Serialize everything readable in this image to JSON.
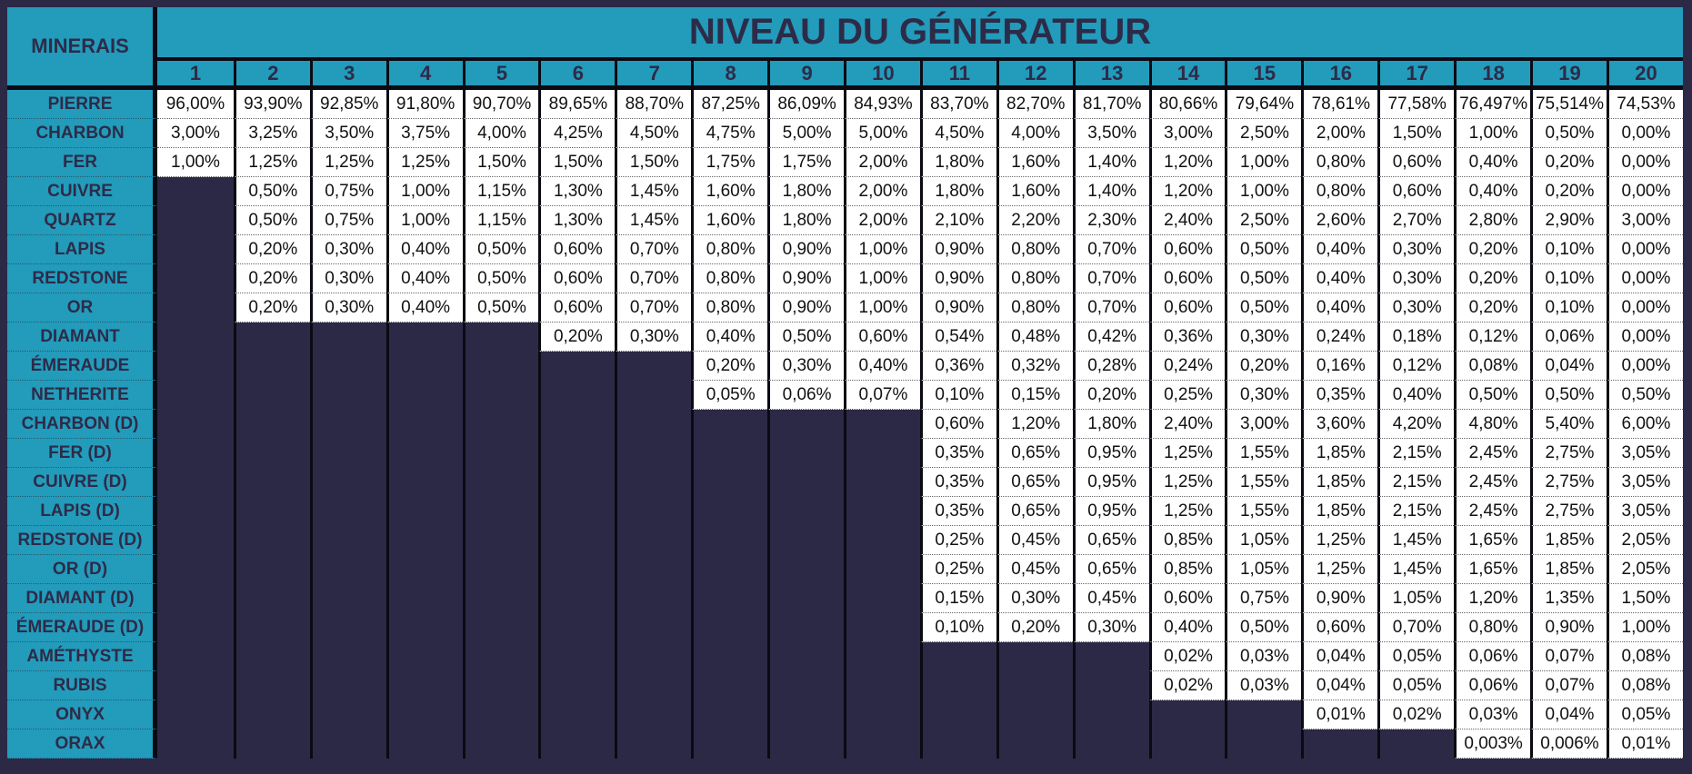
{
  "corner_label": "MINERAIS",
  "title": "NIVEAU DU GÉNÉRATEUR",
  "levels": [
    "1",
    "2",
    "3",
    "4",
    "5",
    "6",
    "7",
    "8",
    "9",
    "10",
    "11",
    "12",
    "13",
    "14",
    "15",
    "16",
    "17",
    "18",
    "19",
    "20"
  ],
  "colors": {
    "header_bg": "#239bbb",
    "header_text": "#2d2b48",
    "empty_cell": "#2c2946",
    "value_cell": "#ffffff",
    "grid": "#0a0a12"
  },
  "rows": [
    {
      "label": "PIERRE",
      "values": [
        "96,00%",
        "93,90%",
        "92,85%",
        "91,80%",
        "90,70%",
        "89,65%",
        "88,70%",
        "87,25%",
        "86,09%",
        "84,93%",
        "83,70%",
        "82,70%",
        "81,70%",
        "80,66%",
        "79,64%",
        "78,61%",
        "77,58%",
        "76,497%",
        "75,514%",
        "74,53%"
      ]
    },
    {
      "label": "CHARBON",
      "values": [
        "3,00%",
        "3,25%",
        "3,50%",
        "3,75%",
        "4,00%",
        "4,25%",
        "4,50%",
        "4,75%",
        "5,00%",
        "5,00%",
        "4,50%",
        "4,00%",
        "3,50%",
        "3,00%",
        "2,50%",
        "2,00%",
        "1,50%",
        "1,00%",
        "0,50%",
        "0,00%"
      ]
    },
    {
      "label": "FER",
      "values": [
        "1,00%",
        "1,25%",
        "1,25%",
        "1,25%",
        "1,50%",
        "1,50%",
        "1,50%",
        "1,75%",
        "1,75%",
        "2,00%",
        "1,80%",
        "1,60%",
        "1,40%",
        "1,20%",
        "1,00%",
        "0,80%",
        "0,60%",
        "0,40%",
        "0,20%",
        "0,00%"
      ]
    },
    {
      "label": "CUIVRE",
      "values": [
        null,
        "0,50%",
        "0,75%",
        "1,00%",
        "1,15%",
        "1,30%",
        "1,45%",
        "1,60%",
        "1,80%",
        "2,00%",
        "1,80%",
        "1,60%",
        "1,40%",
        "1,20%",
        "1,00%",
        "0,80%",
        "0,60%",
        "0,40%",
        "0,20%",
        "0,00%"
      ]
    },
    {
      "label": "QUARTZ",
      "values": [
        null,
        "0,50%",
        "0,75%",
        "1,00%",
        "1,15%",
        "1,30%",
        "1,45%",
        "1,60%",
        "1,80%",
        "2,00%",
        "2,10%",
        "2,20%",
        "2,30%",
        "2,40%",
        "2,50%",
        "2,60%",
        "2,70%",
        "2,80%",
        "2,90%",
        "3,00%"
      ]
    },
    {
      "label": "LAPIS",
      "values": [
        null,
        "0,20%",
        "0,30%",
        "0,40%",
        "0,50%",
        "0,60%",
        "0,70%",
        "0,80%",
        "0,90%",
        "1,00%",
        "0,90%",
        "0,80%",
        "0,70%",
        "0,60%",
        "0,50%",
        "0,40%",
        "0,30%",
        "0,20%",
        "0,10%",
        "0,00%"
      ]
    },
    {
      "label": "REDSTONE",
      "values": [
        null,
        "0,20%",
        "0,30%",
        "0,40%",
        "0,50%",
        "0,60%",
        "0,70%",
        "0,80%",
        "0,90%",
        "1,00%",
        "0,90%",
        "0,80%",
        "0,70%",
        "0,60%",
        "0,50%",
        "0,40%",
        "0,30%",
        "0,20%",
        "0,10%",
        "0,00%"
      ]
    },
    {
      "label": "OR",
      "values": [
        null,
        "0,20%",
        "0,30%",
        "0,40%",
        "0,50%",
        "0,60%",
        "0,70%",
        "0,80%",
        "0,90%",
        "1,00%",
        "0,90%",
        "0,80%",
        "0,70%",
        "0,60%",
        "0,50%",
        "0,40%",
        "0,30%",
        "0,20%",
        "0,10%",
        "0,00%"
      ]
    },
    {
      "label": "DIAMANT",
      "values": [
        null,
        null,
        null,
        null,
        null,
        "0,20%",
        "0,30%",
        "0,40%",
        "0,50%",
        "0,60%",
        "0,54%",
        "0,48%",
        "0,42%",
        "0,36%",
        "0,30%",
        "0,24%",
        "0,18%",
        "0,12%",
        "0,06%",
        "0,00%"
      ]
    },
    {
      "label": "ÉMERAUDE",
      "values": [
        null,
        null,
        null,
        null,
        null,
        null,
        null,
        "0,20%",
        "0,30%",
        "0,40%",
        "0,36%",
        "0,32%",
        "0,28%",
        "0,24%",
        "0,20%",
        "0,16%",
        "0,12%",
        "0,08%",
        "0,04%",
        "0,00%"
      ]
    },
    {
      "label": "NETHERITE",
      "values": [
        null,
        null,
        null,
        null,
        null,
        null,
        null,
        "0,05%",
        "0,06%",
        "0,07%",
        "0,10%",
        "0,15%",
        "0,20%",
        "0,25%",
        "0,30%",
        "0,35%",
        "0,40%",
        "0,50%",
        "0,50%",
        "0,50%"
      ]
    },
    {
      "label": "CHARBON (D)",
      "values": [
        null,
        null,
        null,
        null,
        null,
        null,
        null,
        null,
        null,
        null,
        "0,60%",
        "1,20%",
        "1,80%",
        "2,40%",
        "3,00%",
        "3,60%",
        "4,20%",
        "4,80%",
        "5,40%",
        "6,00%"
      ]
    },
    {
      "label": "FER (D)",
      "values": [
        null,
        null,
        null,
        null,
        null,
        null,
        null,
        null,
        null,
        null,
        "0,35%",
        "0,65%",
        "0,95%",
        "1,25%",
        "1,55%",
        "1,85%",
        "2,15%",
        "2,45%",
        "2,75%",
        "3,05%"
      ]
    },
    {
      "label": "CUIVRE (D)",
      "values": [
        null,
        null,
        null,
        null,
        null,
        null,
        null,
        null,
        null,
        null,
        "0,35%",
        "0,65%",
        "0,95%",
        "1,25%",
        "1,55%",
        "1,85%",
        "2,15%",
        "2,45%",
        "2,75%",
        "3,05%"
      ]
    },
    {
      "label": "LAPIS (D)",
      "values": [
        null,
        null,
        null,
        null,
        null,
        null,
        null,
        null,
        null,
        null,
        "0,35%",
        "0,65%",
        "0,95%",
        "1,25%",
        "1,55%",
        "1,85%",
        "2,15%",
        "2,45%",
        "2,75%",
        "3,05%"
      ]
    },
    {
      "label": "REDSTONE (D)",
      "values": [
        null,
        null,
        null,
        null,
        null,
        null,
        null,
        null,
        null,
        null,
        "0,25%",
        "0,45%",
        "0,65%",
        "0,85%",
        "1,05%",
        "1,25%",
        "1,45%",
        "1,65%",
        "1,85%",
        "2,05%"
      ]
    },
    {
      "label": "OR (D)",
      "values": [
        null,
        null,
        null,
        null,
        null,
        null,
        null,
        null,
        null,
        null,
        "0,25%",
        "0,45%",
        "0,65%",
        "0,85%",
        "1,05%",
        "1,25%",
        "1,45%",
        "1,65%",
        "1,85%",
        "2,05%"
      ]
    },
    {
      "label": "DIAMANT (D)",
      "values": [
        null,
        null,
        null,
        null,
        null,
        null,
        null,
        null,
        null,
        null,
        "0,15%",
        "0,30%",
        "0,45%",
        "0,60%",
        "0,75%",
        "0,90%",
        "1,05%",
        "1,20%",
        "1,35%",
        "1,50%"
      ]
    },
    {
      "label": "ÉMERAUDE (D)",
      "values": [
        null,
        null,
        null,
        null,
        null,
        null,
        null,
        null,
        null,
        null,
        "0,10%",
        "0,20%",
        "0,30%",
        "0,40%",
        "0,50%",
        "0,60%",
        "0,70%",
        "0,80%",
        "0,90%",
        "1,00%"
      ]
    },
    {
      "label": "AMÉTHYSTE",
      "values": [
        null,
        null,
        null,
        null,
        null,
        null,
        null,
        null,
        null,
        null,
        null,
        null,
        null,
        "0,02%",
        "0,03%",
        "0,04%",
        "0,05%",
        "0,06%",
        "0,07%",
        "0,08%"
      ]
    },
    {
      "label": "RUBIS",
      "values": [
        null,
        null,
        null,
        null,
        null,
        null,
        null,
        null,
        null,
        null,
        null,
        null,
        null,
        "0,02%",
        "0,03%",
        "0,04%",
        "0,05%",
        "0,06%",
        "0,07%",
        "0,08%"
      ]
    },
    {
      "label": "ONYX",
      "values": [
        null,
        null,
        null,
        null,
        null,
        null,
        null,
        null,
        null,
        null,
        null,
        null,
        null,
        null,
        null,
        "0,01%",
        "0,02%",
        "0,03%",
        "0,04%",
        "0,05%"
      ]
    },
    {
      "label": "ORAX",
      "values": [
        null,
        null,
        null,
        null,
        null,
        null,
        null,
        null,
        null,
        null,
        null,
        null,
        null,
        null,
        null,
        null,
        null,
        "0,003%",
        "0,006%",
        "0,01%"
      ]
    }
  ]
}
